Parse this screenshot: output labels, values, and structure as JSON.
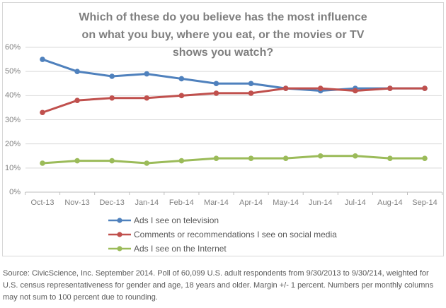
{
  "chart_data": {
    "type": "line",
    "title": "Which of these do you believe has the most influence on what you buy, where you eat, or the movies or TV shows you watch?",
    "title_lines": [
      "Which of these do you believe has the most influence",
      "on what you buy, where you eat, or the movies or TV",
      "shows you watch?"
    ],
    "categories": [
      "Oct-13",
      "Nov-13",
      "Dec-13",
      "Jan-14",
      "Feb-14",
      "Mar-14",
      "Apr-14",
      "May-14",
      "Jun-14",
      "Jul-14",
      "Aug-14",
      "Sep-14"
    ],
    "series": [
      {
        "name": "Ads I see on television",
        "color": "#4F81BD",
        "values": [
          55,
          50,
          48,
          49,
          47,
          45,
          45,
          43,
          42,
          43,
          43,
          43
        ]
      },
      {
        "name": "Comments or recommendations I see on social media",
        "color": "#C0504D",
        "values": [
          33,
          38,
          39,
          39,
          40,
          41,
          41,
          43,
          43,
          42,
          43,
          43
        ]
      },
      {
        "name": "Ads I see on the Internet",
        "color": "#9BBB59",
        "values": [
          12,
          13,
          13,
          12,
          13,
          14,
          14,
          14,
          15,
          15,
          14,
          14
        ]
      }
    ],
    "y_axis": {
      "tick_labels": [
        "60%",
        "50%",
        "40%",
        "30%",
        "20%",
        "10%",
        "0%"
      ],
      "tick_values": [
        60,
        50,
        40,
        30,
        20,
        10,
        0
      ],
      "min": 0,
      "max": 60,
      "unit": "percent"
    },
    "grid": true,
    "legend_position": "bottom",
    "grid_color": "#D9D9D9",
    "axis_color": "#BFBFBF",
    "title_color": "#7F7F7F",
    "axis_text_color": "#808080",
    "legend_text_color": "#595959"
  },
  "footer": {
    "source_text": "Source: CivicScience, Inc. September 2014. Poll of 60,099 U.S. adult respondents from 9/30/2013 to 9/30/214, weighted for U.S. census representativeness for gender and age, 18 years and older. Margin +/- 1 percent. Numbers per monthly columns may not sum to 100 percent due to rounding."
  }
}
